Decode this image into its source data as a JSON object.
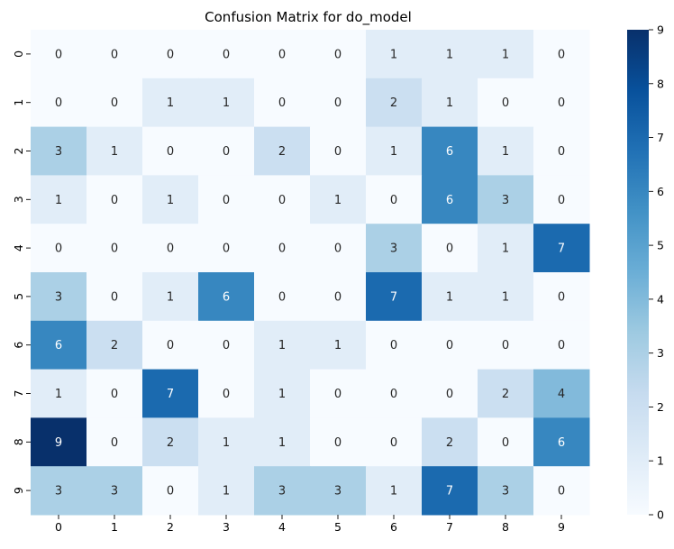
{
  "chart_data": {
    "type": "heatmap",
    "title": "Confusion Matrix for do_model",
    "xlabel": "",
    "ylabel": "",
    "x_categories": [
      "0",
      "1",
      "2",
      "3",
      "4",
      "5",
      "6",
      "7",
      "8",
      "9"
    ],
    "y_categories": [
      "0",
      "1",
      "2",
      "3",
      "4",
      "5",
      "6",
      "7",
      "8",
      "9"
    ],
    "values": [
      [
        0,
        0,
        0,
        0,
        0,
        0,
        1,
        1,
        1,
        0
      ],
      [
        0,
        0,
        1,
        1,
        0,
        0,
        2,
        1,
        0,
        0
      ],
      [
        3,
        1,
        0,
        0,
        2,
        0,
        1,
        6,
        1,
        0
      ],
      [
        1,
        0,
        1,
        0,
        0,
        1,
        0,
        6,
        3,
        0
      ],
      [
        0,
        0,
        0,
        0,
        0,
        0,
        3,
        0,
        1,
        7
      ],
      [
        3,
        0,
        1,
        6,
        0,
        0,
        7,
        1,
        1,
        0
      ],
      [
        6,
        2,
        0,
        0,
        1,
        1,
        0,
        0,
        0,
        0
      ],
      [
        1,
        0,
        7,
        0,
        1,
        0,
        0,
        0,
        2,
        4
      ],
      [
        9,
        0,
        2,
        1,
        1,
        0,
        0,
        2,
        0,
        6
      ],
      [
        3,
        3,
        0,
        1,
        3,
        3,
        1,
        7,
        3,
        0
      ]
    ],
    "vmin": 0,
    "vmax": 9,
    "colormap": "Blues",
    "colorbar_ticks": [
      "0",
      "1",
      "2",
      "3",
      "4",
      "5",
      "6",
      "7",
      "8",
      "9"
    ],
    "annotations": true,
    "grid": false
  }
}
